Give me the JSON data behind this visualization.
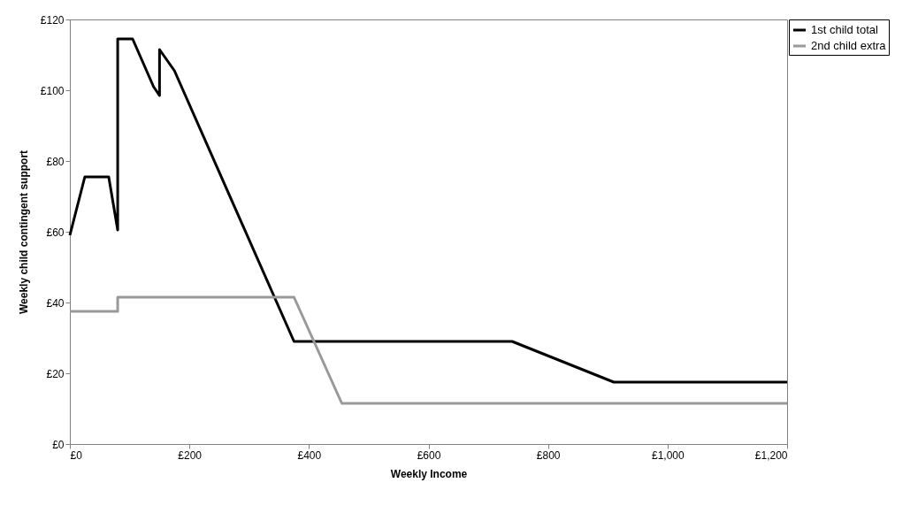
{
  "chart_data": {
    "type": "line",
    "xlabel": "Weekly Income",
    "ylabel": "Weekly child contingent support",
    "xlim": [
      0,
      1200
    ],
    "ylim": [
      0,
      120
    ],
    "xticks": [
      {
        "value": 0,
        "label": "£0"
      },
      {
        "value": 200,
        "label": "£200"
      },
      {
        "value": 400,
        "label": "£400"
      },
      {
        "value": 600,
        "label": "£600"
      },
      {
        "value": 800,
        "label": "£800"
      },
      {
        "value": 1000,
        "label": "£1,000"
      },
      {
        "value": 1200,
        "label": "£1,200"
      }
    ],
    "yticks": [
      {
        "value": 0,
        "label": "£0"
      },
      {
        "value": 20,
        "label": "£20"
      },
      {
        "value": 40,
        "label": "£40"
      },
      {
        "value": 60,
        "label": "£60"
      },
      {
        "value": 80,
        "label": "£80"
      },
      {
        "value": 100,
        "label": "£100"
      },
      {
        "value": 120,
        "label": "£120"
      }
    ],
    "grid": false,
    "legend": "right",
    "marker": "none",
    "line_style": "solid",
    "series": [
      {
        "name": "1st child total",
        "color": "#000000",
        "x": [
          0,
          25,
          65,
          80,
          80,
          105,
          140,
          150,
          150,
          175,
          375,
          740,
          910,
          1200
        ],
        "values": [
          59,
          75.5,
          75.5,
          60.5,
          114.5,
          114.5,
          101,
          98.5,
          111.5,
          105.5,
          29,
          29,
          17.5,
          17.5
        ]
      },
      {
        "name": "2nd child extra",
        "color": "#999999",
        "x": [
          0,
          80,
          80,
          375,
          455,
          1200
        ],
        "values": [
          37.5,
          37.5,
          41.5,
          41.5,
          11.5,
          11.5
        ]
      }
    ]
  }
}
